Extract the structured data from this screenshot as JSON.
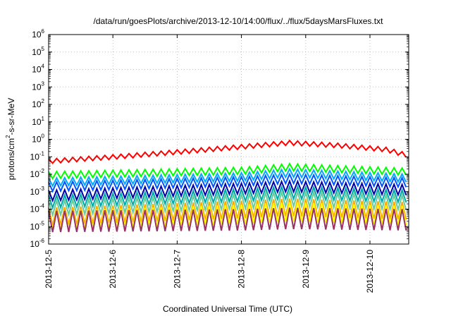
{
  "chart_data": {
    "type": "line",
    "title": "/data/run/goesPlots/archive/2013-12-10/14:00/flux/../flux/5daysMarsFluxes.txt",
    "xlabel": "Coordinated Universal Time (UTC)",
    "ylabel": {
      "prefix": "protons/cm",
      "sup": "2",
      "suffix": "-s-sr-MeV"
    },
    "y_scale": "log",
    "ylim": [
      1e-06,
      1000000.0
    ],
    "y_ticks": [
      {
        "base": "10",
        "exp": "-6"
      },
      {
        "base": "10",
        "exp": "-5"
      },
      {
        "base": "10",
        "exp": "-4"
      },
      {
        "base": "10",
        "exp": "-3"
      },
      {
        "base": "10",
        "exp": "-2"
      },
      {
        "base": "10",
        "exp": "-1"
      },
      {
        "base": "10",
        "exp": "0"
      },
      {
        "base": "10",
        "exp": "1"
      },
      {
        "base": "10",
        "exp": "2"
      },
      {
        "base": "10",
        "exp": "3"
      },
      {
        "base": "10",
        "exp": "4"
      },
      {
        "base": "10",
        "exp": "5"
      },
      {
        "base": "10",
        "exp": "6"
      }
    ],
    "x_range": [
      "2013-12-05",
      "2013-12-10 14:00"
    ],
    "x_ticks": [
      "2013-12-5",
      "2013-12-6",
      "2013-12-7",
      "2013-12-8",
      "2013-12-9",
      "2013-12-10"
    ],
    "grid": true,
    "legend": "none",
    "sawtooth_period_hours": 3,
    "series": [
      {
        "color": "#ff0000",
        "baseline": [
          [
            0,
            0.075
          ],
          [
            24,
            0.13
          ],
          [
            48,
            0.25
          ],
          [
            72,
            0.5
          ],
          [
            90,
            0.85
          ],
          [
            108,
            0.6
          ],
          [
            126,
            0.35
          ],
          [
            134,
            0.16
          ]
        ],
        "drop_factor": 0.55
      },
      {
        "color": "#00ff00",
        "baseline": [
          [
            0,
            0.014
          ],
          [
            72,
            0.025
          ],
          [
            90,
            0.04
          ],
          [
            134,
            0.022
          ]
        ],
        "drop_factor": 0.4
      },
      {
        "color": "#00aaff",
        "baseline": [
          [
            0,
            0.006
          ],
          [
            72,
            0.012
          ],
          [
            90,
            0.02
          ],
          [
            134,
            0.01
          ]
        ],
        "drop_factor": 0.35
      },
      {
        "color": "#0055ff",
        "baseline": [
          [
            0,
            0.0035
          ],
          [
            72,
            0.007
          ],
          [
            90,
            0.01
          ],
          [
            134,
            0.006
          ]
        ],
        "drop_factor": 0.3
      },
      {
        "color": "#0000aa",
        "baseline": [
          [
            0,
            0.0012
          ],
          [
            72,
            0.003
          ],
          [
            90,
            0.004
          ],
          [
            134,
            0.0025
          ]
        ],
        "drop_factor": 0.25
      },
      {
        "color": "#00aaaa",
        "baseline": [
          [
            0,
            0.0006
          ],
          [
            72,
            0.0014
          ],
          [
            90,
            0.002
          ],
          [
            134,
            0.0012
          ]
        ],
        "drop_factor": 0.2
      },
      {
        "color": "#66cc99",
        "baseline": [
          [
            0,
            0.0003
          ],
          [
            72,
            0.0007
          ],
          [
            90,
            0.001
          ],
          [
            134,
            0.0006
          ]
        ],
        "drop_factor": 0.15
      },
      {
        "color": "#ffaa00",
        "baseline": [
          [
            0,
            0.00012
          ],
          [
            72,
            0.0003
          ],
          [
            90,
            0.0004
          ],
          [
            134,
            0.00025
          ]
        ],
        "drop_factor": 0.1
      },
      {
        "color": "#ffff00",
        "baseline": [
          [
            0,
            8e-05
          ],
          [
            72,
            0.00018
          ],
          [
            90,
            0.00025
          ],
          [
            134,
            0.00015
          ]
        ],
        "drop_factor": 0.08
      },
      {
        "color": "#993366",
        "baseline": [
          [
            0,
            8e-05
          ],
          [
            72,
            0.0001
          ],
          [
            90,
            0.00012
          ],
          [
            134,
            0.0001
          ]
        ],
        "drop_factor": 0.06
      }
    ]
  }
}
